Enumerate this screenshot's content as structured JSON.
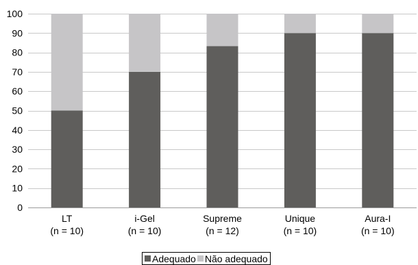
{
  "chart_data": {
    "type": "bar",
    "stacked": true,
    "title": "",
    "xlabel": "",
    "ylabel": "",
    "ylim": [
      0,
      100
    ],
    "yticks": [
      0,
      10,
      20,
      30,
      40,
      50,
      60,
      70,
      80,
      90,
      100
    ],
    "grid": "horizontal",
    "legend_position": "bottom",
    "categories": [
      {
        "label": "LT",
        "sublabel": "(n = 10)"
      },
      {
        "label": "i-Gel",
        "sublabel": "(n = 10)"
      },
      {
        "label": "Supreme",
        "sublabel": "(n = 12)"
      },
      {
        "label": "Unique",
        "sublabel": "(n = 10)"
      },
      {
        "label": "Aura-I",
        "sublabel": "(n = 10)"
      }
    ],
    "series": [
      {
        "name": "Adequado",
        "color": "#5f5e5c",
        "values": [
          50,
          70,
          83.3,
          90,
          90
        ]
      },
      {
        "name": "Não adequado",
        "color": "#c6c5c7",
        "values": [
          50,
          30,
          16.7,
          10,
          10
        ]
      }
    ]
  }
}
